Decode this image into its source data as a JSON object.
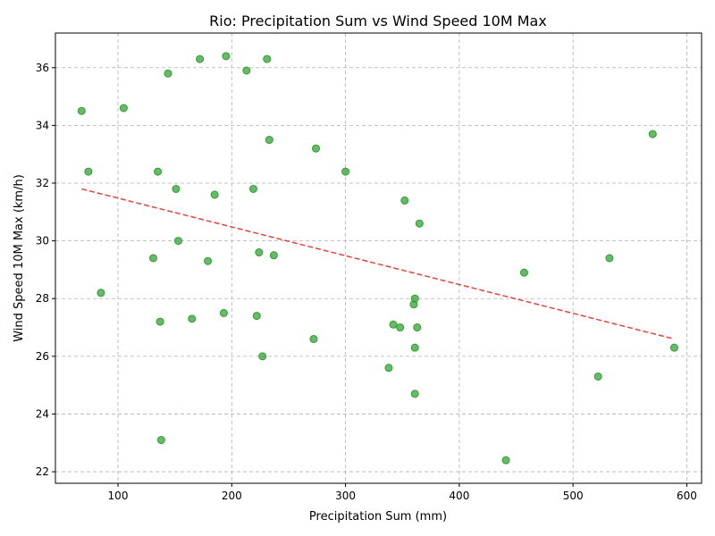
{
  "chart_data": {
    "type": "scatter",
    "title": "Rio: Precipitation Sum vs Wind Speed 10M Max",
    "xlabel": "Precipitation Sum (mm)",
    "ylabel": "Wind Speed 10M Max (km/h)",
    "xlim": [
      45,
      613
    ],
    "ylim": [
      21.6,
      37.2
    ],
    "xticks": [
      100,
      200,
      300,
      400,
      500,
      600
    ],
    "yticks": [
      22,
      24,
      26,
      28,
      30,
      32,
      34,
      36
    ],
    "grid": true,
    "point_color": "#2ca02c",
    "trend_color": "#e8413a",
    "points": [
      {
        "x": 68,
        "y": 34.5
      },
      {
        "x": 105,
        "y": 34.6
      },
      {
        "x": 144,
        "y": 35.8
      },
      {
        "x": 172,
        "y": 36.3
      },
      {
        "x": 195,
        "y": 36.4
      },
      {
        "x": 213,
        "y": 35.9
      },
      {
        "x": 231,
        "y": 36.3
      },
      {
        "x": 74,
        "y": 32.4
      },
      {
        "x": 135,
        "y": 32.4
      },
      {
        "x": 151,
        "y": 31.8
      },
      {
        "x": 185,
        "y": 31.6
      },
      {
        "x": 219,
        "y": 31.8
      },
      {
        "x": 233,
        "y": 33.5
      },
      {
        "x": 274,
        "y": 33.2
      },
      {
        "x": 300,
        "y": 32.4
      },
      {
        "x": 352,
        "y": 31.4
      },
      {
        "x": 365,
        "y": 30.6
      },
      {
        "x": 570,
        "y": 33.7
      },
      {
        "x": 153,
        "y": 30.0
      },
      {
        "x": 131,
        "y": 29.4
      },
      {
        "x": 179,
        "y": 29.3
      },
      {
        "x": 224,
        "y": 29.6
      },
      {
        "x": 237,
        "y": 29.5
      },
      {
        "x": 457,
        "y": 28.9
      },
      {
        "x": 532,
        "y": 29.4
      },
      {
        "x": 85,
        "y": 28.2
      },
      {
        "x": 137,
        "y": 27.2
      },
      {
        "x": 165,
        "y": 27.3
      },
      {
        "x": 193,
        "y": 27.5
      },
      {
        "x": 222,
        "y": 27.4
      },
      {
        "x": 361,
        "y": 28.0
      },
      {
        "x": 360,
        "y": 27.8
      },
      {
        "x": 342,
        "y": 27.1
      },
      {
        "x": 348,
        "y": 27.0
      },
      {
        "x": 363,
        "y": 27.0
      },
      {
        "x": 272,
        "y": 26.6
      },
      {
        "x": 227,
        "y": 26.0
      },
      {
        "x": 361,
        "y": 26.3
      },
      {
        "x": 338,
        "y": 25.6
      },
      {
        "x": 361,
        "y": 24.7
      },
      {
        "x": 522,
        "y": 25.3
      },
      {
        "x": 589,
        "y": 26.3
      },
      {
        "x": 138,
        "y": 23.1
      },
      {
        "x": 441,
        "y": 22.4
      }
    ],
    "trendline": {
      "x0": 68,
      "y0": 31.8,
      "x1": 589,
      "y1": 26.6
    }
  }
}
